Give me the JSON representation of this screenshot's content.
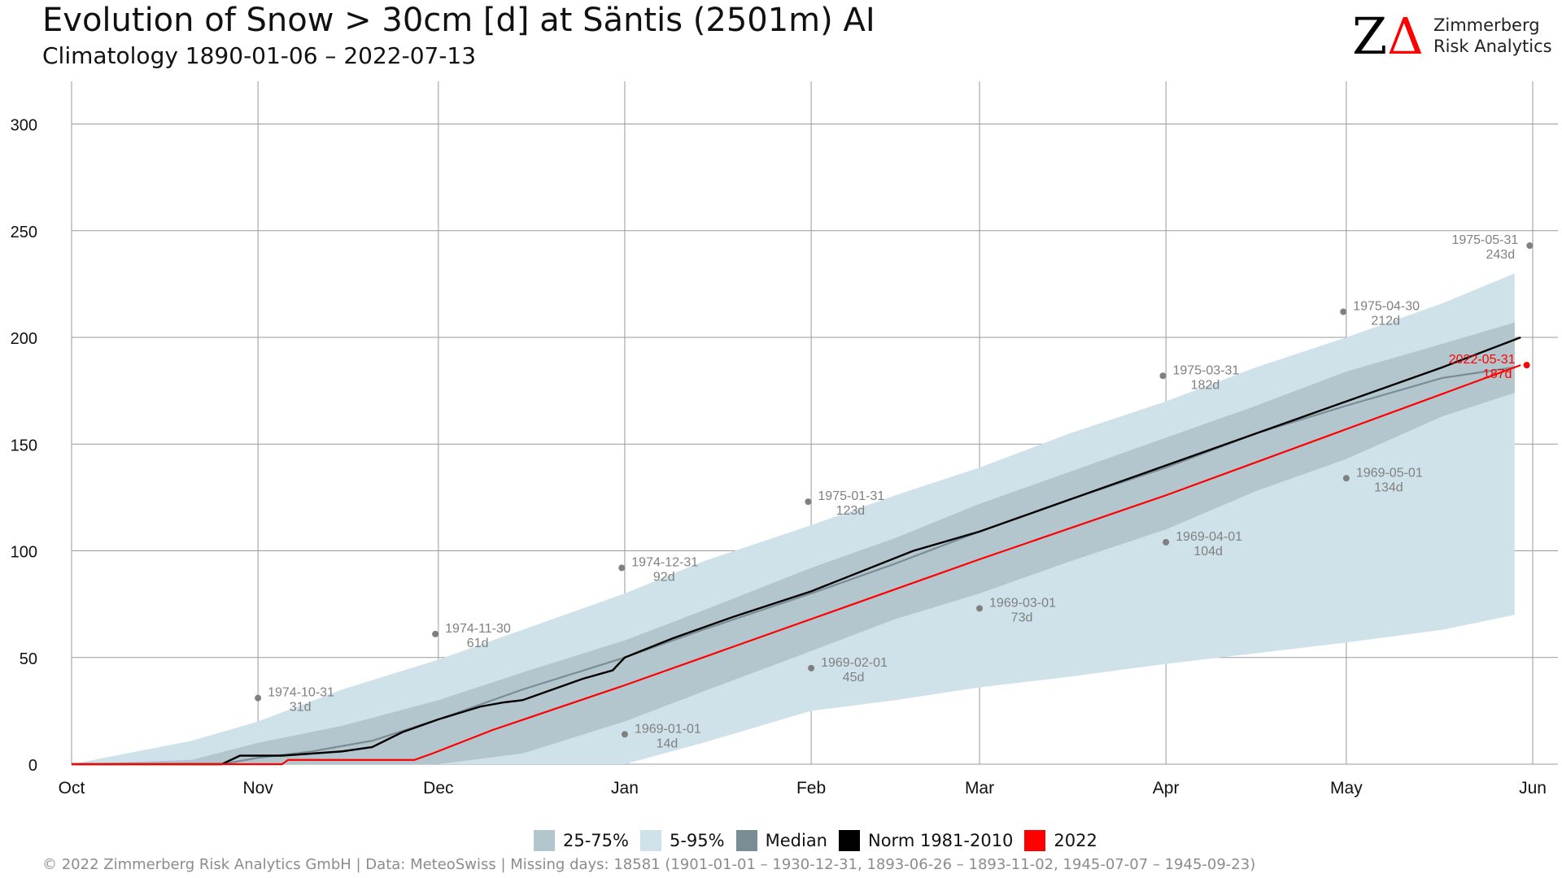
{
  "title": "Evolution of Snow > 30cm [d] at Säntis (2501m) AI",
  "subtitle": "Climatology 1890-01-06 – 2022-07-13",
  "logo": {
    "mark_z": "Z",
    "mark_a": "Δ",
    "line1": "Zimmerberg",
    "line2": "Risk Analytics"
  },
  "footer": "©  2022 Zimmerberg Risk Analytics GmbH | Data: MeteoSwiss | Missing days: 18581 (1901-01-01 – 1930-12-31, 1893-06-26 – 1893-11-02, 1945-07-07 – 1945-09-23)",
  "legend": [
    {
      "label": "25-75%",
      "color": "#b3c6cd"
    },
    {
      "label": "5-95%",
      "color": "#d0e2e9"
    },
    {
      "label": "Median",
      "color": "#7a8d94"
    },
    {
      "label": "Norm 1981-2010",
      "color": "#000000"
    },
    {
      "label": "2022",
      "color": "#ff0000"
    }
  ],
  "chart_data": {
    "type": "area",
    "xlabel": "",
    "ylabel": "",
    "x_ticks": [
      "Oct",
      "Nov",
      "Dec",
      "Jan",
      "Feb",
      "Mar",
      "Apr",
      "May",
      "Jun"
    ],
    "x_tick_days": [
      0,
      31,
      61,
      92,
      123,
      151,
      182,
      212,
      243
    ],
    "x_range_days": [
      0,
      243
    ],
    "ylim": [
      0,
      320
    ],
    "y_ticks": [
      0,
      50,
      100,
      150,
      200,
      250,
      300
    ],
    "grid": true,
    "legend_position": "bottom",
    "bands": {
      "p5_95": {
        "x": [
          0,
          20,
          31,
          45,
          61,
          75,
          92,
          105,
          123,
          137,
          151,
          166,
          182,
          197,
          212,
          228,
          240
        ],
        "low": [
          0,
          0,
          0,
          0,
          0,
          0,
          0,
          10,
          25,
          30,
          36,
          41,
          47,
          52,
          57,
          63,
          70
        ],
        "high": [
          0,
          11,
          20,
          35,
          49,
          63,
          80,
          95,
          112,
          126,
          139,
          155,
          170,
          186,
          200,
          216,
          230
        ]
      },
      "p25_75": {
        "x": [
          0,
          20,
          31,
          45,
          61,
          75,
          92,
          105,
          123,
          137,
          151,
          166,
          182,
          197,
          212,
          228,
          240
        ],
        "low": [
          0,
          0,
          0,
          0,
          0,
          5,
          20,
          34,
          53,
          68,
          80,
          95,
          110,
          128,
          143,
          163,
          174
        ],
        "high": [
          0,
          2,
          10,
          18,
          30,
          43,
          58,
          72,
          92,
          106,
          122,
          137,
          153,
          168,
          184,
          197,
          207
        ]
      }
    },
    "series": [
      {
        "name": "Median",
        "x": [
          0,
          25,
          31,
          40,
          50,
          61,
          75,
          92,
          105,
          123,
          137,
          151,
          166,
          182,
          197,
          212,
          228,
          240
        ],
        "values": [
          0,
          0,
          3,
          6,
          11,
          21,
          35,
          50,
          63,
          80,
          94,
          109,
          124,
          139,
          155,
          168,
          181,
          186
        ]
      },
      {
        "name": "Norm 1981-2010",
        "x": [
          0,
          25,
          28,
          35,
          40,
          45,
          50,
          55,
          61,
          68,
          72,
          75,
          78,
          80,
          85,
          90,
          92,
          100,
          110,
          123,
          140,
          151,
          166,
          182,
          197,
          212,
          228,
          241
        ],
        "values": [
          0,
          0,
          4,
          4,
          5,
          6,
          8,
          15,
          21,
          27,
          29,
          30,
          33,
          35,
          40,
          44,
          50,
          59,
          69,
          81,
          100,
          109,
          124,
          140,
          155,
          170,
          186,
          200
        ]
      },
      {
        "name": "2022",
        "x": [
          0,
          35,
          36,
          57,
          60,
          70,
          92,
          123,
          151,
          182,
          212,
          241
        ],
        "values": [
          0,
          0,
          2,
          2,
          5,
          16,
          37,
          68,
          96,
          126,
          157,
          187
        ]
      }
    ],
    "annotations": [
      {
        "date": "1974-10-31",
        "value_label": "31d",
        "x": 31,
        "y": 31
      },
      {
        "date": "1974-11-30",
        "value_label": "61d",
        "x": 60.5,
        "y": 61
      },
      {
        "date": "1974-12-31",
        "value_label": "92d",
        "x": 91.5,
        "y": 92
      },
      {
        "date": "1975-01-31",
        "value_label": "123d",
        "x": 122.5,
        "y": 123
      },
      {
        "date": "1975-03-31",
        "value_label": "182d",
        "x": 181.5,
        "y": 182
      },
      {
        "date": "1975-04-30",
        "value_label": "212d",
        "x": 211.5,
        "y": 212
      },
      {
        "date": "1975-05-31",
        "value_label": "243d",
        "x": 242.5,
        "y": 243
      },
      {
        "date": "1969-01-01",
        "value_label": "14d",
        "x": 92,
        "y": 14
      },
      {
        "date": "1969-02-01",
        "value_label": "45d",
        "x": 123,
        "y": 45
      },
      {
        "date": "1969-03-01",
        "value_label": "73d",
        "x": 151,
        "y": 73
      },
      {
        "date": "1969-04-01",
        "value_label": "104d",
        "x": 182,
        "y": 104
      },
      {
        "date": "1969-05-01",
        "value_label": "134d",
        "x": 212,
        "y": 134
      },
      {
        "date": "2022-05-31",
        "value_label": "187d",
        "x": 242,
        "y": 187,
        "highlight": true
      }
    ]
  }
}
